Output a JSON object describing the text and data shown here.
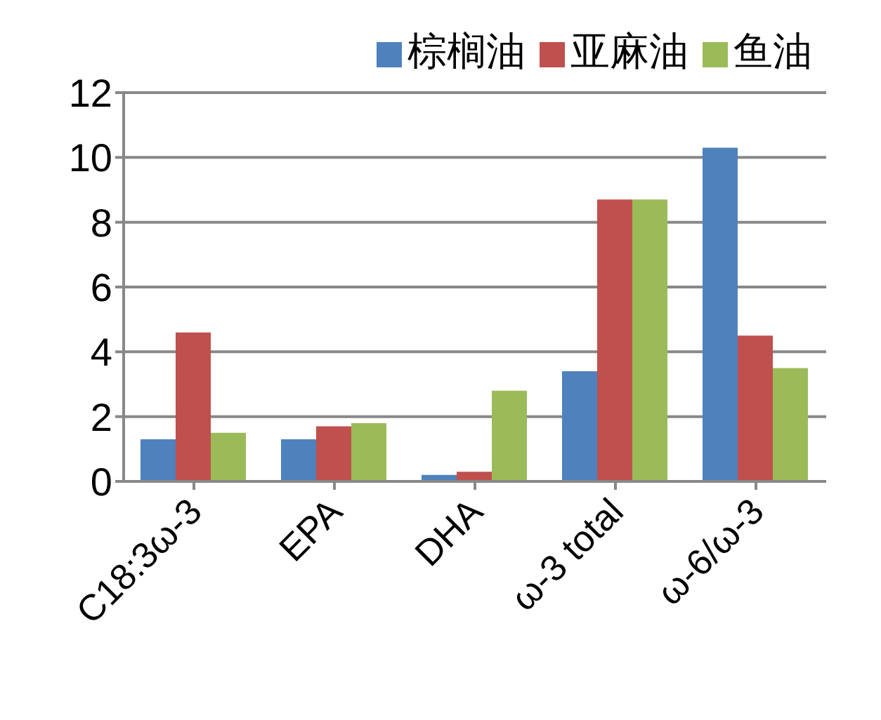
{
  "chart_data": {
    "type": "bar",
    "categories": [
      "C18:3ω-3",
      "EPA",
      "DHA",
      "ω-3 total",
      "ω-6/ω-3"
    ],
    "series": [
      {
        "name": "棕榈油",
        "color": "#4f81bd",
        "values": [
          1.3,
          1.3,
          0.2,
          3.4,
          10.3
        ]
      },
      {
        "name": "亚麻油",
        "color": "#c0504d",
        "values": [
          4.6,
          1.7,
          0.3,
          8.7,
          4.5
        ]
      },
      {
        "name": "鱼油",
        "color": "#9bbb59",
        "values": [
          1.5,
          1.8,
          2.8,
          8.7,
          3.5
        ]
      }
    ],
    "ylim": [
      0,
      12
    ],
    "yticks": [
      0,
      2,
      4,
      6,
      8,
      10,
      12
    ],
    "grid": "y",
    "legend": "top right"
  }
}
